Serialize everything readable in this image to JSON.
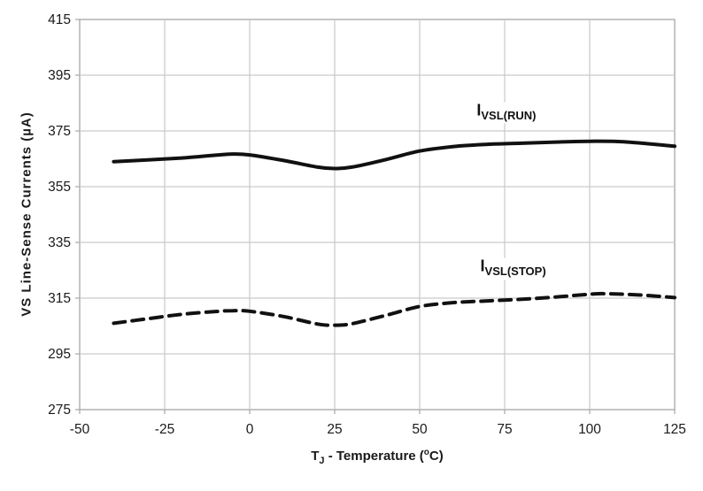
{
  "chart_data": {
    "type": "line",
    "title": "",
    "ylabel": "VS Line-Sense Currents (µA)",
    "xlabel_parts": {
      "prefix": "T",
      "sub": "J",
      "mid": " - Temperature (",
      "sup": "o",
      "suffix": "C)"
    },
    "xlim": [
      -50,
      125
    ],
    "ylim": [
      275,
      415
    ],
    "x_ticks": [
      "-50",
      "-25",
      "0",
      "25",
      "50",
      "75",
      "100",
      "125"
    ],
    "x_tick_values": [
      -50,
      -25,
      0,
      25,
      50,
      75,
      100,
      125
    ],
    "y_ticks": [
      "275",
      "295",
      "315",
      "335",
      "355",
      "375",
      "395",
      "415"
    ],
    "y_tick_values": [
      275,
      295,
      315,
      335,
      355,
      375,
      395,
      415
    ],
    "grid": true,
    "legend_position": "inline annotations above each curve",
    "colors": {
      "line": "#111111",
      "grid": "#c9c9c9",
      "axis_border": "#a6a6a6",
      "text": "#1a1a1a",
      "background": "#ffffff"
    },
    "series": [
      {
        "name": "IVSL(RUN)",
        "label_parts": {
          "prefix": "I",
          "sub": "VSL(RUN)"
        },
        "style": "solid",
        "label_anchor": {
          "x": 75.5,
          "y": 381.5
        },
        "points": [
          [
            -40,
            364.0
          ],
          [
            -30,
            364.6
          ],
          [
            -20,
            365.3
          ],
          [
            -10,
            366.3
          ],
          [
            -5,
            366.7
          ],
          [
            0,
            366.4
          ],
          [
            10,
            364.4
          ],
          [
            20,
            362.0
          ],
          [
            25,
            361.5
          ],
          [
            30,
            362.0
          ],
          [
            40,
            364.7
          ],
          [
            50,
            367.8
          ],
          [
            60,
            369.4
          ],
          [
            70,
            370.2
          ],
          [
            80,
            370.6
          ],
          [
            90,
            371.0
          ],
          [
            100,
            371.3
          ],
          [
            110,
            371.1
          ],
          [
            125,
            369.5
          ]
        ]
      },
      {
        "name": "IVSL(STOP)",
        "label_parts": {
          "prefix": "I",
          "sub": "VSL(STOP)"
        },
        "style": "dashed",
        "label_anchor": {
          "x": 77.5,
          "y": 325.5
        },
        "points": [
          [
            -40,
            306.0
          ],
          [
            -30,
            307.6
          ],
          [
            -20,
            309.2
          ],
          [
            -10,
            310.2
          ],
          [
            -5,
            310.5
          ],
          [
            0,
            310.3
          ],
          [
            10,
            308.4
          ],
          [
            20,
            305.7
          ],
          [
            25,
            305.3
          ],
          [
            30,
            305.8
          ],
          [
            40,
            308.8
          ],
          [
            50,
            312.0
          ],
          [
            60,
            313.4
          ],
          [
            70,
            314.0
          ],
          [
            80,
            314.6
          ],
          [
            90,
            315.4
          ],
          [
            100,
            316.4
          ],
          [
            105,
            316.6
          ],
          [
            115,
            316.1
          ],
          [
            125,
            315.2
          ]
        ]
      }
    ]
  }
}
